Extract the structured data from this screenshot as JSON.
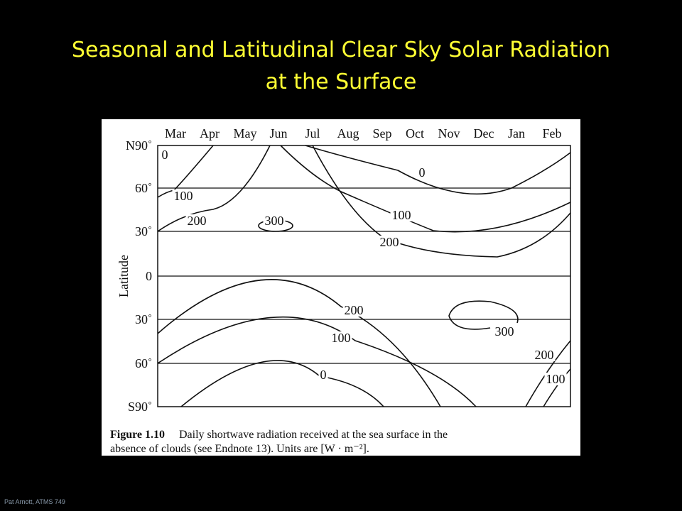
{
  "title": "Seasonal and Latitudinal Clear Sky Solar Radiation at the Surface",
  "figure": {
    "months": [
      "Mar",
      "Apr",
      "May",
      "Jun",
      "Jul",
      "Aug",
      "Sep",
      "Oct",
      "Nov",
      "Dec",
      "Jan",
      "Feb"
    ],
    "latitudes": [
      "N90˚",
      "60˚",
      "30˚",
      "0",
      "30˚",
      "60˚",
      "S90˚"
    ],
    "axis_label": "Latitude",
    "contour_labels": [
      "0",
      "100",
      "200",
      "300",
      "0",
      "100",
      "200",
      "200",
      "100",
      "0",
      "300",
      "200",
      "100"
    ],
    "caption": {
      "label": "Figure 1.10",
      "line1": "Daily shortwave radiation received at the sea surface in the",
      "line2": "absence of clouds (see Endnote 13). Units are [W · m⁻²]."
    }
  },
  "footer": "Pat Arnott, ATMS 749"
}
